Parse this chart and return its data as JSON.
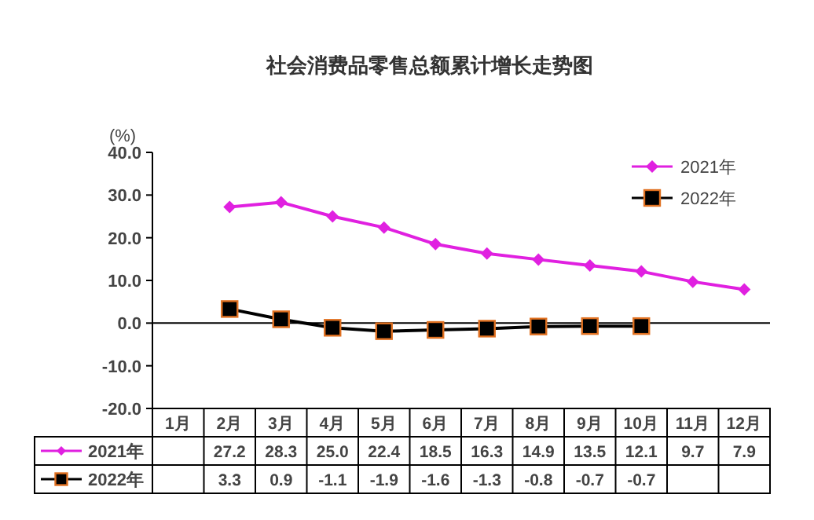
{
  "chart_data": {
    "type": "line",
    "title": "社会消费品零售总额累计增长走势图",
    "ylabel": "(%)",
    "categories": [
      "1月",
      "2月",
      "3月",
      "4月",
      "5月",
      "6月",
      "7月",
      "8月",
      "9月",
      "10月",
      "11月",
      "12月"
    ],
    "series": [
      {
        "name": "2021年",
        "color": "#e020e0",
        "marker": "diamond",
        "values": [
          null,
          27.2,
          28.3,
          25.0,
          22.4,
          18.5,
          16.3,
          14.9,
          13.5,
          12.1,
          9.7,
          7.9
        ],
        "value_labels": [
          null,
          "27.2",
          "28.3",
          "25.0",
          "22.4",
          "18.5",
          "16.3",
          "14.9",
          "13.5",
          "12.1",
          "9.7",
          "7.9"
        ]
      },
      {
        "name": "2022年",
        "color": "#000000",
        "marker": "square",
        "values": [
          null,
          3.3,
          0.9,
          -1.1,
          -1.9,
          -1.6,
          -1.3,
          -0.8,
          -0.7,
          -0.7,
          null,
          null
        ],
        "value_labels": [
          null,
          "3.3",
          "0.9",
          "-1.1",
          "-1.9",
          "-1.6",
          "-1.3",
          "-0.8",
          "-0.7",
          "-0.7",
          null,
          null
        ]
      }
    ],
    "ylim": [
      -20,
      40
    ],
    "yticks": [
      {
        "value": 40,
        "label": "40.0"
      },
      {
        "value": 30,
        "label": "30.0"
      },
      {
        "value": 20,
        "label": "20.0"
      },
      {
        "value": 10,
        "label": "10.0"
      },
      {
        "value": 0,
        "label": "0.0"
      },
      {
        "value": -10,
        "label": "-10.0"
      },
      {
        "value": -20,
        "label": "-20.0"
      }
    ],
    "ref_lines": [
      {
        "axis": "y",
        "value": 0,
        "color": "#000000"
      }
    ],
    "legend": "top right",
    "grid": false
  }
}
